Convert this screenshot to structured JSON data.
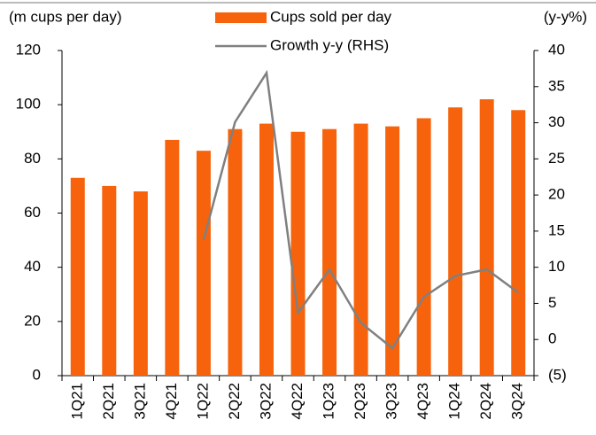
{
  "chart_data": {
    "type": "bar",
    "y_label": "(m cups per day)",
    "y2_label": "(y-y%)",
    "categories": [
      "1Q21",
      "2Q21",
      "3Q21",
      "4Q21",
      "1Q22",
      "2Q22",
      "3Q22",
      "4Q22",
      "1Q23",
      "2Q23",
      "3Q23",
      "4Q23",
      "1Q24",
      "2Q24",
      "3Q24"
    ],
    "series": [
      {
        "name": "Cups sold per day",
        "type": "bar",
        "color": "#f7630c",
        "values": [
          73,
          70,
          68,
          87,
          83,
          91,
          93,
          90,
          91,
          93,
          92,
          95,
          99,
          102,
          98
        ]
      },
      {
        "name": "Growth y-y (RHS)",
        "type": "line",
        "axis": "y2",
        "color": "#808080",
        "values": [
          null,
          null,
          null,
          null,
          13.8,
          30.1,
          36.9,
          3.7,
          9.7,
          2.3,
          -1.2,
          5.9,
          8.8,
          9.7,
          6.5
        ]
      }
    ],
    "ylim": [
      0,
      120
    ],
    "yticks": [
      0,
      20,
      40,
      60,
      80,
      100,
      120
    ],
    "y2lim": [
      -5,
      40
    ],
    "y2ticks": [
      {
        "value": -5,
        "label": "(5)"
      },
      0,
      5,
      10,
      15,
      20,
      25,
      30,
      35,
      40
    ],
    "legend": "top",
    "grid": false
  }
}
